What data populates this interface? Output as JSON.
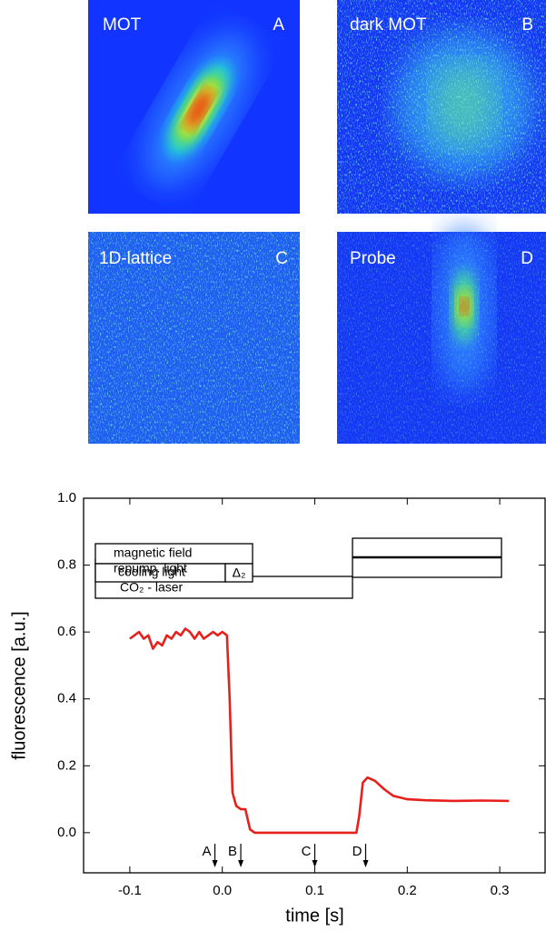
{
  "images": [
    {
      "label": "MOT",
      "letter": "A"
    },
    {
      "label": "dark MOT",
      "letter": "B"
    },
    {
      "label": "1D-lattice",
      "letter": "C"
    },
    {
      "label": "Probe",
      "letter": "D"
    }
  ],
  "timing": {
    "magnetic": "magnetic field",
    "cooling": "cooling light",
    "delta": "Δ₂",
    "repump": "repump. light",
    "laser": "CO₂ - laser"
  },
  "chart_data": {
    "type": "line",
    "xlabel": "time [s]",
    "ylabel": "fluorescence [a.u.]",
    "xlim": [
      -0.15,
      0.35
    ],
    "ylim": [
      -0.12,
      1.0
    ],
    "xticks": [
      -0.1,
      {
        "value": 0.0,
        "label": "0.0"
      },
      0.1,
      0.2,
      0.3
    ],
    "yticks": [
      {
        "value": 0.0,
        "label": "0.0"
      },
      0.2,
      0.4,
      0.6,
      0.8,
      {
        "value": 1.0,
        "label": "1.0"
      }
    ],
    "markers": [
      {
        "label": "A",
        "x": -0.008
      },
      {
        "label": "B",
        "x": 0.02
      },
      {
        "label": "C",
        "x": 0.1
      },
      {
        "label": "D",
        "x": 0.155
      }
    ],
    "series": [
      {
        "color": "#e8201c",
        "x": [
          -0.1,
          -0.095,
          -0.09,
          -0.085,
          -0.08,
          -0.075,
          -0.07,
          -0.065,
          -0.06,
          -0.055,
          -0.05,
          -0.045,
          -0.04,
          -0.035,
          -0.03,
          -0.025,
          -0.02,
          -0.015,
          -0.01,
          -0.005,
          0.0,
          0.005,
          0.008,
          0.011,
          0.015,
          0.02,
          0.025,
          0.03,
          0.035,
          0.05,
          0.07,
          0.09,
          0.11,
          0.13,
          0.145,
          0.148,
          0.152,
          0.157,
          0.165,
          0.175,
          0.185,
          0.2,
          0.22,
          0.25,
          0.28,
          0.31
        ],
        "values": [
          0.58,
          0.59,
          0.6,
          0.58,
          0.59,
          0.55,
          0.57,
          0.56,
          0.59,
          0.58,
          0.6,
          0.59,
          0.61,
          0.6,
          0.58,
          0.6,
          0.58,
          0.59,
          0.6,
          0.59,
          0.6,
          0.59,
          0.4,
          0.12,
          0.08,
          0.07,
          0.07,
          0.01,
          0.0,
          0.0,
          0.0,
          0.0,
          0.0,
          0.0,
          0.0,
          0.05,
          0.15,
          0.165,
          0.155,
          0.13,
          0.11,
          0.1,
          0.097,
          0.095,
          0.096,
          0.095
        ]
      }
    ]
  }
}
